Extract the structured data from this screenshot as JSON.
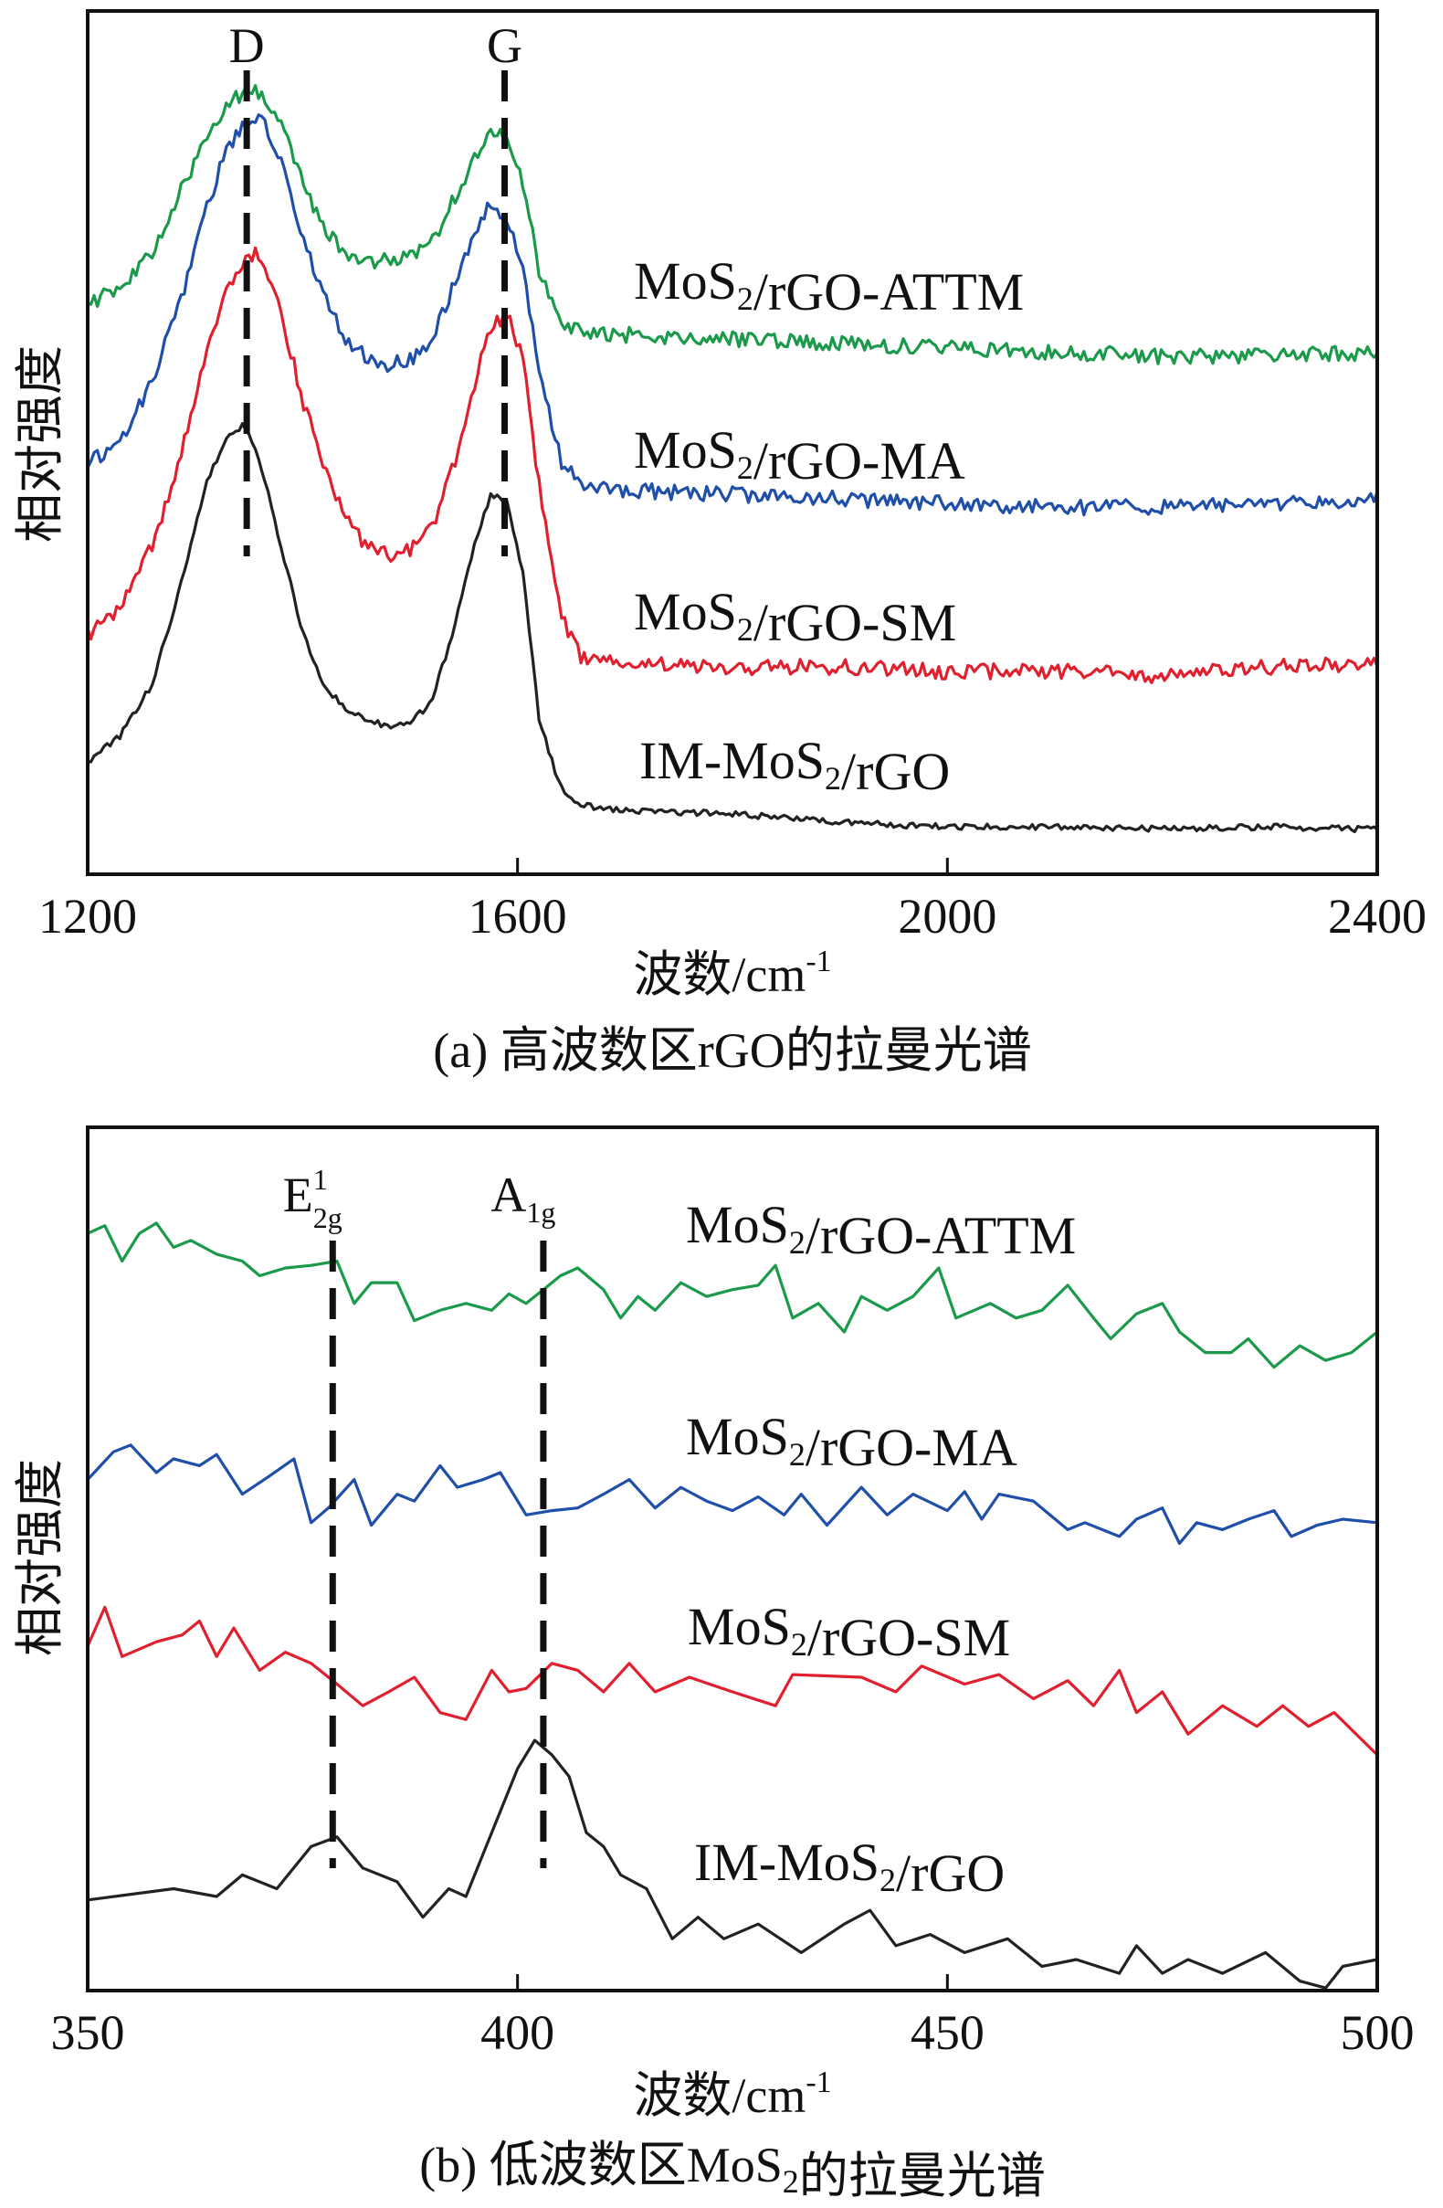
{
  "chart_data": [
    {
      "type": "line",
      "caption": "(a) 高波数区rGO的拉曼光谱",
      "xlabel": "波数/cm",
      "xlabel_sup": "-1",
      "ylabel": "相对强度",
      "xlim": [
        1200,
        2400
      ],
      "ylim": [
        0,
        100
      ],
      "xticks": [
        1200,
        1600,
        2000,
        2400
      ],
      "grid": false,
      "peak_markers": [
        {
          "label": "D",
          "x": 1348
        },
        {
          "label": "G",
          "x": 1588
        }
      ],
      "x": [
        1200,
        1230,
        1260,
        1290,
        1310,
        1330,
        1345,
        1360,
        1380,
        1400,
        1420,
        1440,
        1460,
        1480,
        1500,
        1520,
        1540,
        1560,
        1575,
        1590,
        1605,
        1620,
        1640,
        1660,
        1700,
        1800,
        1900,
        2000,
        2100,
        2200,
        2300,
        2400
      ],
      "series": [
        {
          "name": "MoS2/rGO-ATTM",
          "color": "#1a9a4a",
          "values": [
            66,
            68,
            72,
            80,
            85,
            89,
            90.5,
            90.7,
            87,
            80,
            75,
            72,
            71,
            71,
            71.5,
            73,
            78,
            83,
            86,
            85,
            80,
            70,
            64,
            63,
            62.5,
            62,
            61.5,
            61,
            60.5,
            60,
            60,
            60.5
          ]
        },
        {
          "name": "MoS2/rGO-MA",
          "color": "#1f4fa8",
          "values": [
            47.7,
            50,
            57,
            68,
            77,
            84,
            87,
            88,
            83,
            74,
            67,
            62,
            60,
            59,
            59.5,
            62,
            68,
            74,
            78,
            76,
            70,
            58,
            48,
            45,
            44.5,
            44,
            43.5,
            43,
            42.5,
            42.5,
            43,
            43.5
          ]
        },
        {
          "name": "MoS2/rGO-SM",
          "color": "#e0202e",
          "values": [
            27.8,
            31,
            38,
            50,
            60,
            68,
            71,
            72,
            65,
            55,
            47,
            41,
            38,
            37,
            37.5,
            40,
            47,
            57,
            63,
            65,
            60,
            45,
            30,
            25,
            24.5,
            24,
            24,
            23.5,
            23.5,
            23,
            24,
            24.5
          ]
        },
        {
          "name": "IM-MoS2/rGO",
          "color": "#222222",
          "values": [
            13,
            16,
            22,
            35,
            45,
            51,
            52,
            48,
            38,
            28,
            22,
            19,
            18,
            17,
            17.5,
            20,
            28,
            38,
            44,
            43,
            35,
            18,
            10,
            8,
            7.4,
            7,
            6,
            5.5,
            5.5,
            5.3,
            5.5,
            5.2
          ]
        }
      ]
    },
    {
      "type": "line",
      "caption": "(b) 低波数区MoS2的拉曼光谱",
      "xlabel": "波数/cm",
      "xlabel_sup": "-1",
      "ylabel": "相对强度",
      "xlim": [
        350,
        500
      ],
      "ylim": [
        0,
        100
      ],
      "xticks": [
        350,
        400,
        450,
        500
      ],
      "grid": false,
      "peak_markers": [
        {
          "label": "E",
          "sup": "1",
          "sub": "2g",
          "x": 378.5
        },
        {
          "label": "A",
          "sub": "1g",
          "x": 403
        }
      ],
      "series": [
        {
          "name": "MoS2/rGO-ATTM",
          "color": "#1a9a4a",
          "x": [
            350,
            352,
            354,
            356,
            358,
            360,
            362,
            365,
            368,
            370,
            373,
            376,
            379,
            381,
            383,
            386,
            388,
            391,
            394,
            397,
            399,
            401,
            403,
            405,
            407,
            410,
            412,
            414,
            416,
            419,
            422,
            425,
            428,
            430,
            432,
            435,
            438,
            440,
            443,
            446,
            449,
            451,
            455,
            458,
            461,
            464,
            467,
            469,
            472,
            475,
            477,
            480,
            483,
            485,
            488,
            491,
            494,
            497,
            500
          ],
          "values": [
            87.7,
            88.6,
            84.5,
            87.7,
            88.9,
            86.1,
            86.9,
            85.3,
            84.5,
            82.8,
            83.7,
            84.0,
            84.5,
            79.6,
            82.0,
            82.0,
            77.6,
            78.8,
            79.6,
            78.8,
            80.7,
            79.6,
            81.2,
            82.8,
            83.7,
            81.2,
            77.9,
            80.4,
            78.8,
            82.0,
            80.4,
            81.2,
            81.7,
            84.0,
            77.9,
            79.6,
            76.3,
            80.4,
            78.8,
            80.4,
            83.7,
            77.9,
            79.6,
            77.9,
            78.8,
            81.7,
            77.9,
            75.5,
            78.4,
            79.6,
            76.3,
            73.9,
            73.9,
            75.5,
            72.2,
            74.7,
            73.0,
            73.9,
            76.3
          ]
        },
        {
          "name": "MoS2/rGO-MA",
          "color": "#1f4fa8",
          "x": [
            350,
            353,
            355,
            358,
            360,
            363,
            365,
            368,
            371,
            374,
            376,
            378,
            381,
            383,
            386,
            388,
            391,
            393,
            396,
            398,
            401,
            404,
            407,
            410,
            413,
            416,
            419,
            422,
            425,
            428,
            431,
            433,
            436,
            440,
            443,
            446,
            450,
            452,
            454,
            456,
            460,
            464,
            466,
            470,
            472,
            475,
            477,
            479,
            482,
            485,
            488,
            490,
            493,
            496,
            500
          ],
          "values": [
            59.2,
            62.4,
            63.2,
            60.0,
            61.6,
            60.8,
            62.1,
            57.5,
            59.5,
            61.6,
            54.2,
            55.9,
            59.2,
            53.9,
            57.5,
            56.7,
            60.8,
            58.3,
            59.2,
            60.0,
            55.1,
            55.6,
            55.9,
            57.5,
            59.2,
            55.9,
            58.3,
            56.7,
            55.6,
            57.2,
            55.1,
            57.5,
            53.9,
            58.3,
            55.1,
            57.5,
            55.6,
            57.8,
            54.6,
            57.5,
            56.7,
            53.4,
            54.2,
            52.6,
            54.6,
            55.9,
            51.8,
            54.2,
            53.4,
            54.6,
            55.6,
            52.6,
            53.9,
            54.6,
            54.2
          ]
        },
        {
          "name": "MoS2/rGO-SM",
          "color": "#e0202e",
          "x": [
            350,
            352,
            354,
            358,
            361,
            363,
            365,
            367,
            370,
            373,
            376,
            379,
            382,
            385,
            388,
            391,
            394,
            397,
            399,
            401,
            404,
            407,
            410,
            413,
            416,
            420,
            425,
            430,
            432,
            440,
            444,
            447,
            452,
            456,
            460,
            464,
            467,
            470,
            472,
            475,
            478,
            482,
            486,
            489,
            492,
            495,
            500
          ],
          "values": [
            39.9,
            44.4,
            38.7,
            40.4,
            41.2,
            42.8,
            38.7,
            42.0,
            37.1,
            39.2,
            37.9,
            35.5,
            33.0,
            34.6,
            36.3,
            32.2,
            31.4,
            37.1,
            34.6,
            35.0,
            37.9,
            37.1,
            34.6,
            37.9,
            34.6,
            36.3,
            34.6,
            33.0,
            36.6,
            36.3,
            34.6,
            37.6,
            35.5,
            36.6,
            33.8,
            35.9,
            33.0,
            37.1,
            32.2,
            34.6,
            29.7,
            33.0,
            30.6,
            33.0,
            30.6,
            32.2,
            27.3
          ]
        },
        {
          "name": "IM-MoS2/rGO",
          "color": "#222222",
          "x": [
            350,
            360,
            365,
            368,
            372,
            376,
            379,
            382,
            386,
            389,
            392,
            394,
            397,
            400,
            402,
            404,
            406,
            408,
            410,
            412,
            415,
            418,
            421,
            424,
            428,
            433,
            438,
            441,
            444,
            448,
            452,
            457,
            461,
            465,
            470,
            472,
            475,
            478,
            482,
            487,
            491,
            494,
            496,
            500
          ],
          "values": [
            10.5,
            11.8,
            10.9,
            13.4,
            11.8,
            16.7,
            17.8,
            14.2,
            12.6,
            8.5,
            11.8,
            10.9,
            18.3,
            25.7,
            29.0,
            27.3,
            24.8,
            18.3,
            16.7,
            13.4,
            11.8,
            6.0,
            8.5,
            6.0,
            7.7,
            4.4,
            7.7,
            9.3,
            5.2,
            6.5,
            4.4,
            6.0,
            2.8,
            3.6,
            2.0,
            5.2,
            2.0,
            3.6,
            2.0,
            4.4,
            1.1,
            0.3,
            2.8,
            3.6
          ]
        }
      ]
    }
  ]
}
